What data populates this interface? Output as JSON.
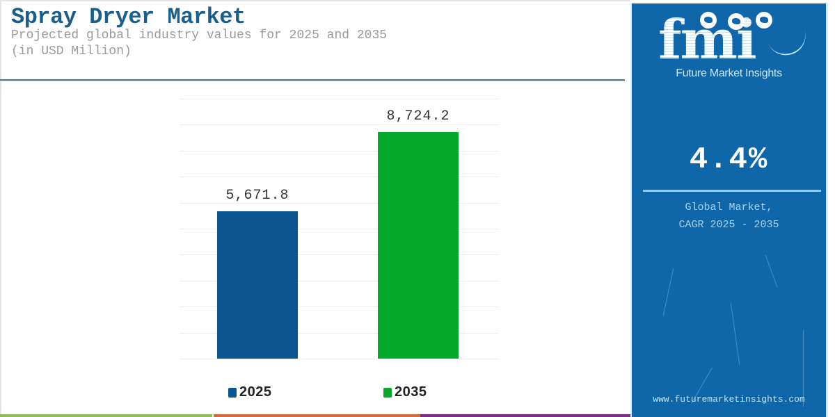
{
  "header": {
    "title": "Spray Dryer Market",
    "subtitle_line1": "Projected global industry values for 2025 and 2035",
    "subtitle_line2": "(in USD Million)"
  },
  "colors": {
    "title": "#1a5f8c",
    "bar_2025": "#0b5591",
    "bar_2035": "#07a92d",
    "panel": "#0f67aa",
    "stripe_green": "#8cbd5a",
    "stripe_orange": "#d36b3e",
    "stripe_purple": "#7b2f86"
  },
  "chart_data": {
    "type": "bar",
    "title": "Spray Dryer Market",
    "subtitle": "Projected global industry values for 2025 and 2035 (in USD Million)",
    "categories": [
      "2025",
      "2035"
    ],
    "values": [
      5671.8,
      8724.2
    ],
    "value_labels": [
      "5,671.8",
      "8,724.2"
    ],
    "xlabel": "",
    "ylabel": "USD Million",
    "ylim": [
      0,
      10000
    ],
    "grid": true,
    "grid_step": 1000,
    "legend": {
      "position": "bottom",
      "entries": [
        {
          "label": "2025",
          "color": "#0b5591"
        },
        {
          "label": "2035",
          "color": "#07a92d"
        }
      ]
    }
  },
  "side_panel": {
    "logo_text": "fmi",
    "logo_subtitle": "Future Market Insights",
    "cagr_value": "4.4%",
    "cagr_caption_line1": "Global Market,",
    "cagr_caption_line2": "CAGR 2025 - 2035",
    "website": "www.futuremarketinsights.com"
  }
}
